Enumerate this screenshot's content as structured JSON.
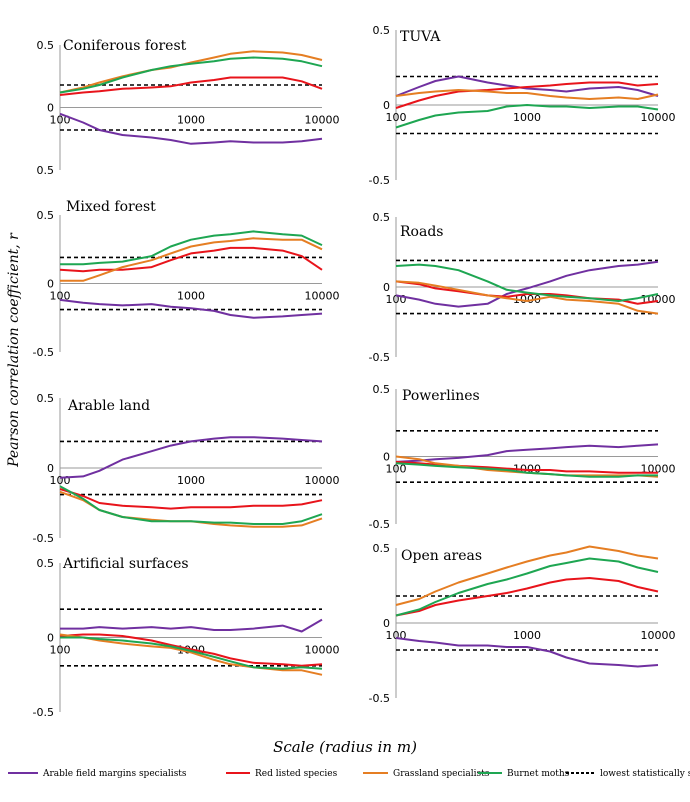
{
  "y_axis_label": "Pearson correlation coefficient, r",
  "x_axis_label": "Scale (radius in m)",
  "legend": [
    {
      "label": "Arable field margins specialists",
      "color": "#7030A0",
      "dashed": false
    },
    {
      "label": "Red listed species",
      "color": "#E8141B",
      "dashed": false
    },
    {
      "label": "Grassland specialists",
      "color": "#E57E23",
      "dashed": false
    },
    {
      "label": "Burnet moths",
      "color": "#1EA652",
      "dashed": false
    },
    {
      "label": "lowest statistically significant value of r",
      "color": "#000000",
      "dashed": true
    }
  ],
  "chart_data": [
    {
      "type": "line",
      "title": "Coniferous forest",
      "xscale": "log",
      "xlim": [
        100,
        10000
      ],
      "ylim": [
        -0.5,
        0.5
      ],
      "x_ticks": [
        "100",
        "1000",
        "10000"
      ],
      "y_ticks": [
        "0.5",
        "0",
        "0.5"
      ],
      "threshold": 0.18,
      "x": [
        100,
        150,
        200,
        300,
        500,
        700,
        1000,
        1500,
        2000,
        3000,
        5000,
        7000,
        10000
      ],
      "series": [
        {
          "name": "Arable field margins specialists",
          "values": [
            -0.05,
            -0.12,
            -0.18,
            -0.22,
            -0.24,
            -0.26,
            -0.29,
            -0.28,
            -0.27,
            -0.28,
            -0.28,
            -0.27,
            -0.25
          ]
        },
        {
          "name": "Red listed species",
          "values": [
            0.1,
            0.12,
            0.13,
            0.15,
            0.16,
            0.17,
            0.2,
            0.22,
            0.24,
            0.24,
            0.24,
            0.21,
            0.15
          ]
        },
        {
          "name": "Grassland specialists",
          "values": [
            0.12,
            0.16,
            0.2,
            0.25,
            0.3,
            0.32,
            0.36,
            0.4,
            0.43,
            0.45,
            0.44,
            0.42,
            0.38
          ]
        },
        {
          "name": "Burnet moths",
          "values": [
            0.12,
            0.15,
            0.18,
            0.24,
            0.3,
            0.33,
            0.35,
            0.37,
            0.39,
            0.4,
            0.39,
            0.37,
            0.33
          ]
        }
      ]
    },
    {
      "type": "line",
      "title": "TUVA",
      "xscale": "log",
      "xlim": [
        100,
        10000
      ],
      "ylim": [
        -0.5,
        0.5
      ],
      "x_ticks": [
        "100",
        "1000",
        "10000"
      ],
      "y_ticks": [
        "0.5",
        "0",
        "-0.5"
      ],
      "threshold": 0.19,
      "x": [
        100,
        150,
        200,
        300,
        500,
        700,
        1000,
        1500,
        2000,
        3000,
        5000,
        7000,
        10000
      ],
      "series": [
        {
          "name": "Arable field margins specialists",
          "values": [
            0.06,
            0.12,
            0.16,
            0.19,
            0.15,
            0.13,
            0.11,
            0.1,
            0.09,
            0.11,
            0.12,
            0.1,
            0.06
          ]
        },
        {
          "name": "Red listed species",
          "values": [
            -0.02,
            0.03,
            0.06,
            0.09,
            0.1,
            0.11,
            0.12,
            0.13,
            0.14,
            0.15,
            0.15,
            0.13,
            0.14
          ]
        },
        {
          "name": "Grassland specialists",
          "values": [
            0.06,
            0.08,
            0.09,
            0.1,
            0.09,
            0.08,
            0.08,
            0.06,
            0.05,
            0.04,
            0.05,
            0.04,
            0.07
          ]
        },
        {
          "name": "Burnet moths",
          "values": [
            -0.15,
            -0.1,
            -0.07,
            -0.05,
            -0.04,
            -0.01,
            0.0,
            -0.01,
            -0.01,
            -0.02,
            -0.01,
            -0.01,
            -0.03
          ]
        }
      ]
    },
    {
      "type": "line",
      "title": "Mixed forest",
      "xscale": "log",
      "xlim": [
        100,
        10000
      ],
      "ylim": [
        -0.5,
        0.5
      ],
      "x_ticks": [
        "100",
        "1000",
        "10000"
      ],
      "y_ticks": [
        "0.5",
        "0",
        "-0.5"
      ],
      "threshold": 0.19,
      "x": [
        100,
        150,
        200,
        300,
        500,
        700,
        1000,
        1500,
        2000,
        3000,
        5000,
        7000,
        10000
      ],
      "series": [
        {
          "name": "Arable field margins specialists",
          "values": [
            -0.12,
            -0.14,
            -0.15,
            -0.16,
            -0.15,
            -0.17,
            -0.18,
            -0.2,
            -0.23,
            -0.25,
            -0.24,
            -0.23,
            -0.22
          ]
        },
        {
          "name": "Red listed species",
          "values": [
            0.1,
            0.09,
            0.1,
            0.1,
            0.12,
            0.17,
            0.22,
            0.24,
            0.26,
            0.26,
            0.24,
            0.2,
            0.1
          ]
        },
        {
          "name": "Grassland specialists",
          "values": [
            0.02,
            0.02,
            0.06,
            0.12,
            0.17,
            0.22,
            0.27,
            0.3,
            0.31,
            0.33,
            0.32,
            0.32,
            0.25
          ]
        },
        {
          "name": "Burnet moths",
          "values": [
            0.14,
            0.14,
            0.15,
            0.16,
            0.2,
            0.27,
            0.32,
            0.35,
            0.36,
            0.38,
            0.36,
            0.35,
            0.28
          ]
        }
      ]
    },
    {
      "type": "line",
      "title": "Roads",
      "xscale": "log",
      "xlim": [
        100,
        10000
      ],
      "ylim": [
        -0.5,
        0.5
      ],
      "x_ticks": [
        "100",
        "1000",
        "10000"
      ],
      "y_ticks": [
        "0.5",
        "0",
        "-0.5"
      ],
      "threshold": 0.19,
      "x": [
        100,
        150,
        200,
        300,
        500,
        700,
        1000,
        1500,
        2000,
        3000,
        5000,
        7000,
        10000
      ],
      "series": [
        {
          "name": "Arable field margins specialists",
          "values": [
            -0.06,
            -0.09,
            -0.12,
            -0.14,
            -0.12,
            -0.05,
            -0.01,
            0.04,
            0.08,
            0.12,
            0.15,
            0.16,
            0.18
          ]
        },
        {
          "name": "Red listed species",
          "values": [
            0.04,
            0.02,
            -0.01,
            -0.03,
            -0.06,
            -0.07,
            -0.05,
            -0.05,
            -0.06,
            -0.08,
            -0.09,
            -0.12,
            -0.1
          ]
        },
        {
          "name": "Grassland specialists",
          "values": [
            0.04,
            0.03,
            0.01,
            -0.02,
            -0.06,
            -0.08,
            -0.1,
            -0.07,
            -0.09,
            -0.1,
            -0.12,
            -0.17,
            -0.19
          ]
        },
        {
          "name": "Burnet moths",
          "values": [
            0.15,
            0.16,
            0.15,
            0.12,
            0.04,
            -0.02,
            -0.04,
            -0.06,
            -0.07,
            -0.08,
            -0.1,
            -0.08,
            -0.05
          ]
        }
      ]
    },
    {
      "type": "line",
      "title": "Arable land",
      "xscale": "log",
      "xlim": [
        100,
        10000
      ],
      "ylim": [
        -0.5,
        0.5
      ],
      "x_ticks": [
        "100",
        "1000",
        "10000"
      ],
      "y_ticks": [
        "0.5",
        "0",
        "-0.5"
      ],
      "threshold": 0.19,
      "x": [
        100,
        150,
        200,
        300,
        500,
        700,
        1000,
        1500,
        2000,
        3000,
        5000,
        7000,
        10000
      ],
      "series": [
        {
          "name": "Arable field margins specialists",
          "values": [
            -0.07,
            -0.06,
            -0.02,
            0.06,
            0.12,
            0.16,
            0.19,
            0.21,
            0.22,
            0.22,
            0.21,
            0.2,
            0.19
          ]
        },
        {
          "name": "Red listed species",
          "values": [
            -0.15,
            -0.2,
            -0.25,
            -0.27,
            -0.28,
            -0.29,
            -0.28,
            -0.28,
            -0.28,
            -0.27,
            -0.27,
            -0.26,
            -0.23
          ]
        },
        {
          "name": "Grassland specialists",
          "values": [
            -0.17,
            -0.23,
            -0.3,
            -0.35,
            -0.37,
            -0.38,
            -0.38,
            -0.4,
            -0.41,
            -0.42,
            -0.42,
            -0.41,
            -0.36
          ]
        },
        {
          "name": "Burnet moths",
          "values": [
            -0.13,
            -0.22,
            -0.3,
            -0.35,
            -0.38,
            -0.38,
            -0.38,
            -0.39,
            -0.39,
            -0.4,
            -0.4,
            -0.38,
            -0.33
          ]
        }
      ]
    },
    {
      "type": "line",
      "title": "Powerlines",
      "xscale": "log",
      "xlim": [
        100,
        10000
      ],
      "ylim": [
        -0.5,
        0.5
      ],
      "x_ticks": [
        "100",
        "1000",
        "10000"
      ],
      "y_ticks": [
        "0.5",
        "0",
        "-0.5"
      ],
      "threshold": 0.19,
      "x": [
        100,
        150,
        200,
        300,
        500,
        700,
        1000,
        1500,
        2000,
        3000,
        5000,
        7000,
        10000
      ],
      "series": [
        {
          "name": "Arable field margins specialists",
          "values": [
            -0.04,
            -0.03,
            -0.02,
            -0.01,
            0.01,
            0.04,
            0.05,
            0.06,
            0.07,
            0.08,
            0.07,
            0.08,
            0.09
          ]
        },
        {
          "name": "Red listed species",
          "values": [
            -0.04,
            -0.05,
            -0.06,
            -0.07,
            -0.08,
            -0.09,
            -0.1,
            -0.1,
            -0.11,
            -0.11,
            -0.12,
            -0.12,
            -0.12
          ]
        },
        {
          "name": "Grassland specialists",
          "values": [
            0.0,
            -0.02,
            -0.05,
            -0.07,
            -0.1,
            -0.11,
            -0.12,
            -0.13,
            -0.14,
            -0.14,
            -0.14,
            -0.14,
            -0.15
          ]
        },
        {
          "name": "Burnet moths",
          "values": [
            -0.05,
            -0.06,
            -0.07,
            -0.08,
            -0.09,
            -0.1,
            -0.12,
            -0.13,
            -0.14,
            -0.15,
            -0.15,
            -0.14,
            -0.14
          ]
        }
      ]
    },
    {
      "type": "line",
      "title": "Artificial surfaces",
      "xscale": "log",
      "xlim": [
        100,
        10000
      ],
      "ylim": [
        -0.5,
        0.5
      ],
      "x_ticks": [
        "100",
        "1000",
        "10000"
      ],
      "y_ticks": [
        "0.5",
        "0",
        "-0.5"
      ],
      "threshold": 0.19,
      "x": [
        100,
        150,
        200,
        300,
        500,
        700,
        1000,
        1500,
        2000,
        3000,
        5000,
        7000,
        10000
      ],
      "series": [
        {
          "name": "Arable field margins specialists",
          "values": [
            0.06,
            0.06,
            0.07,
            0.06,
            0.07,
            0.06,
            0.07,
            0.05,
            0.05,
            0.06,
            0.08,
            0.04,
            0.12
          ]
        },
        {
          "name": "Red listed species",
          "values": [
            0.01,
            0.02,
            0.02,
            0.01,
            -0.02,
            -0.05,
            -0.08,
            -0.11,
            -0.14,
            -0.17,
            -0.18,
            -0.19,
            -0.18
          ]
        },
        {
          "name": "Grassland specialists",
          "values": [
            0.02,
            0.0,
            -0.02,
            -0.04,
            -0.06,
            -0.07,
            -0.1,
            -0.15,
            -0.18,
            -0.2,
            -0.22,
            -0.22,
            -0.25
          ]
        },
        {
          "name": "Burnet moths",
          "values": [
            0.0,
            0.0,
            -0.01,
            -0.02,
            -0.04,
            -0.06,
            -0.09,
            -0.13,
            -0.16,
            -0.2,
            -0.21,
            -0.2,
            -0.21
          ]
        }
      ]
    },
    {
      "type": "line",
      "title": "Open areas",
      "xscale": "log",
      "xlim": [
        100,
        10000
      ],
      "ylim": [
        -0.5,
        0.5
      ],
      "x_ticks": [
        "100",
        "1000",
        "10000"
      ],
      "y_ticks": [
        "0.5",
        "0",
        "-0.5"
      ],
      "threshold": 0.18,
      "x": [
        100,
        150,
        200,
        300,
        500,
        700,
        1000,
        1500,
        2000,
        3000,
        5000,
        7000,
        10000
      ],
      "series": [
        {
          "name": "Arable field margins specialists",
          "values": [
            -0.1,
            -0.12,
            -0.13,
            -0.15,
            -0.15,
            -0.16,
            -0.16,
            -0.19,
            -0.23,
            -0.27,
            -0.28,
            -0.29,
            -0.28
          ]
        },
        {
          "name": "Red listed species",
          "values": [
            0.05,
            0.08,
            0.12,
            0.15,
            0.18,
            0.2,
            0.23,
            0.27,
            0.29,
            0.3,
            0.28,
            0.24,
            0.21
          ]
        },
        {
          "name": "Grassland specialists",
          "values": [
            0.12,
            0.16,
            0.21,
            0.27,
            0.33,
            0.37,
            0.41,
            0.45,
            0.47,
            0.51,
            0.48,
            0.45,
            0.43
          ]
        },
        {
          "name": "Burnet moths",
          "values": [
            0.05,
            0.09,
            0.14,
            0.2,
            0.26,
            0.29,
            0.33,
            0.38,
            0.4,
            0.43,
            0.41,
            0.37,
            0.34
          ]
        }
      ]
    }
  ]
}
